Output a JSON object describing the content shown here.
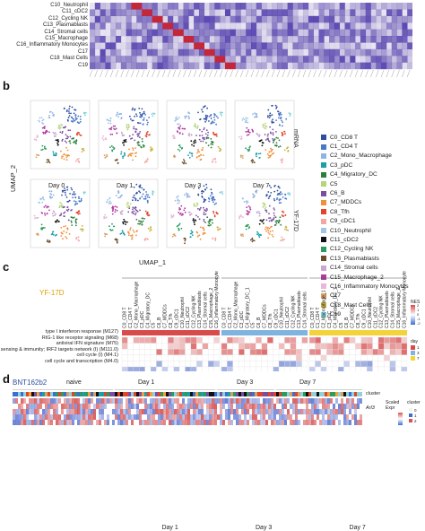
{
  "panel_a": {
    "row_labels": [
      "C10_Neutrophil",
      "C11_cDC2",
      "C12_Cycling NK",
      "C13_Plasmablasts",
      "C14_Stromal cells",
      "C15_Macrophage",
      "C16_Inflammatory Monocytes",
      "C17",
      "C18_Mast Cells",
      "C19"
    ]
  },
  "panel_b": {
    "letter": "b",
    "days": [
      "Day 0",
      "Day 1",
      "Day 3",
      "Day 7"
    ],
    "row_labels": [
      "mRNA",
      "YF-17D"
    ],
    "xlabel": "UMAP_1",
    "ylabel": "UMAP_2",
    "legend": [
      {
        "label": "C0_CD8 T",
        "color": "#2c4fa3"
      },
      {
        "label": "C1_CD4 T",
        "color": "#4a78c9"
      },
      {
        "label": "C2_Mono_Macrophage",
        "color": "#8fb3e3"
      },
      {
        "label": "C3_pDC",
        "color": "#1c9fa6"
      },
      {
        "label": "C4_Migratory_DC",
        "color": "#2a7f3b"
      },
      {
        "label": "C5",
        "color": "#b5d57a"
      },
      {
        "label": "C6_B",
        "color": "#7a4ea3"
      },
      {
        "label": "C7_MDDCs",
        "color": "#f28f3b"
      },
      {
        "label": "C8_Tfh",
        "color": "#e0452c"
      },
      {
        "label": "C9_cDC1",
        "color": "#f4a7a2"
      },
      {
        "label": "C10_Neutrophil",
        "color": "#a3c4e6"
      },
      {
        "label": "C11_cDC2",
        "color": "#111111"
      },
      {
        "label": "C12_Cycling NK",
        "color": "#2b9c5e"
      },
      {
        "label": "C13_Plasmablasts",
        "color": "#6c4c2a"
      },
      {
        "label": "C14_Stromal cells",
        "color": "#c9a6d3"
      },
      {
        "label": "C15_Macrophage_2",
        "color": "#b03aa0"
      },
      {
        "label": "C16_Inflammatory Monocytes",
        "color": "#e6b8d9"
      },
      {
        "label": "C17",
        "color": "#d8a063"
      },
      {
        "label": "C18_Mast Cells",
        "color": "#c8b23e"
      },
      {
        "label": "C19",
        "color": "#7fd3d8"
      }
    ]
  },
  "panel_c": {
    "letter": "c",
    "group_label": "YF-17D",
    "days": [
      "Day 1",
      "Day 3",
      "Day 7"
    ],
    "day_colors": [
      "#d94a4a",
      "#7fb3e0",
      "#f2d43a"
    ],
    "col_labels_day1": [
      "C0_CD8 T",
      "C1_CD4 T",
      "C2_Mono_Macrophage",
      "C3_pDC",
      "C4_Migratory_DC",
      "C5",
      "C6_B",
      "C7_MDDCs",
      "C8_Tfh",
      "C9_cDC1",
      "C10_Neutrophil",
      "C11_cDC2",
      "C12_Cycling NK",
      "C13_Plasmablasts",
      "C14_Stromal cells",
      "C15_Macrophage_2",
      "C16_Inflammatory Monocytes"
    ],
    "col_labels_day3": [
      "C0_CD8 T",
      "C1_CD4 T",
      "C2_Mono_Macrophage",
      "C3_pDC",
      "C4_Migratory_DC_1",
      "C5",
      "C6_B",
      "C7_MDDCs",
      "C8_Tfh",
      "C9_cDC1",
      "C10_Neutrophil",
      "C11_cDC2",
      "C12_Cycling NK",
      "C13_Plasmablasts",
      "C14_Stromal cells"
    ],
    "col_labels_day7": [
      "C0_CD8 T",
      "C1_CD4 T",
      "C2_Macrophage_1",
      "C3_pDC",
      "C4_Migratory_DC_1",
      "C5",
      "C6_B",
      "C7_MDDCs",
      "C8_Tfh",
      "C9_cDC1",
      "C10_Neutrophil",
      "C11_cDC2",
      "C12_Cycling NK",
      "C13_Plasmablasts",
      "C14_Stromal cells",
      "C15_Macrophage_2",
      "C16_Inflammatory Monocytes"
    ],
    "row_labels": [
      "type I interferon response (M127)",
      "RIG-1 like receptor signaling (M68)",
      "antiviral IFN signature (M75)",
      "viral sensing & immunity; IRF2 targets network (I) (M111.0)",
      "cell cycle (I) (M4.1)",
      "cell cycle and transcription (M4.0)"
    ],
    "legend_title": "NES",
    "legend_ticks": [
      "2",
      "1",
      "0",
      "-1",
      "-2"
    ],
    "day_legend_title": "day",
    "day_legend": [
      "1",
      "3",
      "7"
    ]
  },
  "panel_d": {
    "letter": "d",
    "title": "BNT162b2",
    "days": [
      "naive",
      "Day 1",
      "Day 3",
      "Day 7"
    ],
    "right_labels": [
      "cluster",
      "Scaled Expr",
      "cluster"
    ],
    "gene": "Arl3",
    "scale_ticks": [
      "2",
      "0",
      "-2"
    ],
    "cluster_ticks": [
      "0",
      "1",
      "2"
    ]
  }
}
